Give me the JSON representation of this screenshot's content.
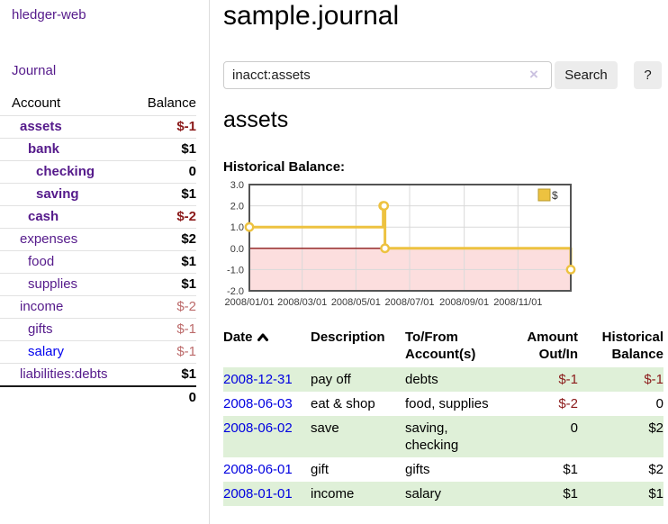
{
  "sidebar": {
    "brand": "hledger-web",
    "nav": [
      {
        "label": "Journal"
      }
    ],
    "accounts_table": {
      "headers": [
        "Account",
        "Balance"
      ],
      "rows": [
        {
          "account": "assets",
          "level": 0,
          "balance": "$-1",
          "bold": true,
          "balance_style": "neg-strong"
        },
        {
          "account": "bank",
          "level": 1,
          "balance": "$1",
          "bold": true,
          "balance_style": "pos"
        },
        {
          "account": "checking",
          "level": 2,
          "balance": "0",
          "bold": true,
          "balance_style": "pos"
        },
        {
          "account": "saving",
          "level": 2,
          "balance": "$1",
          "bold": true,
          "balance_style": "pos"
        },
        {
          "account": "cash",
          "level": 1,
          "balance": "$-2",
          "bold": true,
          "balance_style": "neg-strong"
        },
        {
          "account": "expenses",
          "level": 0,
          "balance": "$2",
          "bold": false,
          "balance_style": "pos"
        },
        {
          "account": "food",
          "level": 1,
          "balance": "$1",
          "bold": false,
          "balance_style": "pos"
        },
        {
          "account": "supplies",
          "level": 1,
          "balance": "$1",
          "bold": false,
          "balance_style": "pos"
        },
        {
          "account": "income",
          "level": 0,
          "balance": "$-2",
          "bold": false,
          "balance_style": "neg-soft"
        },
        {
          "account": "gifts",
          "level": 1,
          "balance": "$-1",
          "bold": false,
          "balance_style": "neg-soft"
        },
        {
          "account": "salary",
          "level": 1,
          "balance": "$-1",
          "bold": false,
          "balance_style": "neg-soft",
          "link_color": "blue"
        },
        {
          "account": "liabilities:debts",
          "level": 0,
          "balance": "$1",
          "bold": false,
          "balance_style": "pos"
        }
      ],
      "total": "0"
    }
  },
  "header": {
    "title": "sample.journal"
  },
  "search": {
    "value": "inacct:assets",
    "clear_icon": "×",
    "button": "Search",
    "help_button": "?"
  },
  "account_page": {
    "title": "assets",
    "chart_label": "Historical Balance:"
  },
  "chart_data": {
    "type": "line",
    "step": "after",
    "series": [
      {
        "name": "$",
        "points": [
          [
            "2008-01-01",
            1
          ],
          [
            "2008-06-01",
            2
          ],
          [
            "2008-06-02",
            2
          ],
          [
            "2008-06-03",
            0
          ],
          [
            "2008-12-31",
            -1
          ]
        ]
      }
    ],
    "xlim": [
      "2008-01-01",
      "2008-12-31"
    ],
    "ylim": [
      -2,
      3
    ],
    "xticks": [
      "2008/01/01",
      "2008/03/01",
      "2008/05/01",
      "2008/07/01",
      "2008/09/01",
      "2008/11/01"
    ],
    "yticks": [
      "3.0",
      "2.0",
      "1.0",
      "0.0",
      "-1.0",
      "-2.0"
    ],
    "legend_position": "top-right",
    "grid": true,
    "colors": {
      "line": "#edc240",
      "legend_box_border": "#b89b2e",
      "marker_fill": "#ffffff",
      "negative_fill": "#fcdede",
      "zero_line": "#8b1a1a",
      "grid": "#d9d9d9",
      "border": "#545454",
      "tick_text": "#3a3a3a"
    }
  },
  "register": {
    "headers": {
      "date": "Date",
      "description": "Description",
      "accounts_l1": "To/From",
      "accounts_l2": "Account(s)",
      "amount_l1": "Amount",
      "amount_l2": "Out/In",
      "balance_l1": "Historical",
      "balance_l2": "Balance"
    },
    "rows": [
      {
        "date": "2008-12-31",
        "description": "pay off",
        "accounts": "debts",
        "amount": "$-1",
        "balance": "$-1",
        "amount_neg": true,
        "balance_neg": true,
        "highlight": true
      },
      {
        "date": "2008-06-03",
        "description": "eat & shop",
        "accounts": "food, supplies",
        "amount": "$-2",
        "balance": "0",
        "amount_neg": true,
        "balance_neg": false,
        "highlight": false
      },
      {
        "date": "2008-06-02",
        "description": "save",
        "accounts": "saving, checking",
        "amount": "0",
        "balance": "$2",
        "amount_neg": false,
        "balance_neg": false,
        "highlight": true
      },
      {
        "date": "2008-06-01",
        "description": "gift",
        "accounts": "gifts",
        "amount": "$1",
        "balance": "$2",
        "amount_neg": false,
        "balance_neg": false,
        "highlight": false
      },
      {
        "date": "2008-01-01",
        "description": "income",
        "accounts": "salary",
        "amount": "$1",
        "balance": "$1",
        "amount_neg": false,
        "balance_neg": false,
        "highlight": true
      }
    ]
  }
}
